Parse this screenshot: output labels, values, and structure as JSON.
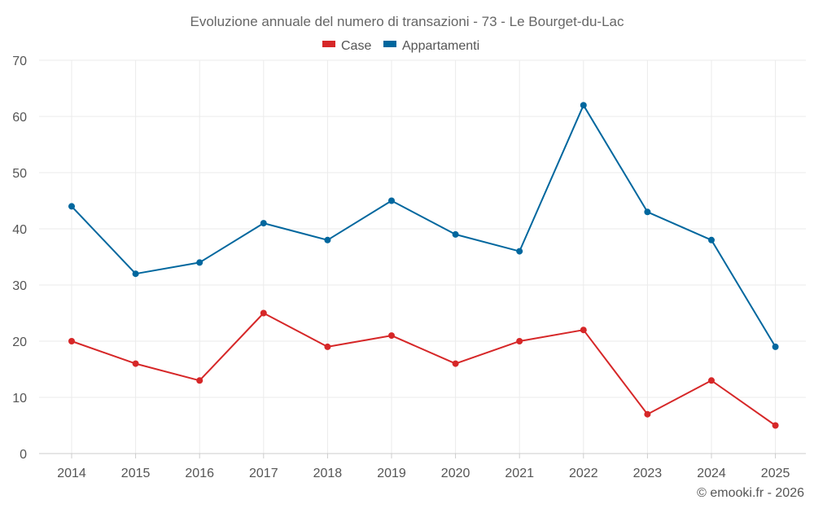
{
  "chart_data": {
    "type": "line",
    "title": "Evoluzione annuale del numero di transazioni - 73 - Le Bourget-du-Lac",
    "categories": [
      "2014",
      "2015",
      "2016",
      "2017",
      "2018",
      "2019",
      "2020",
      "2021",
      "2022",
      "2023",
      "2024",
      "2025"
    ],
    "series": [
      {
        "name": "Case",
        "color": "#d62728",
        "values": [
          20,
          16,
          13,
          25,
          19,
          21,
          16,
          20,
          22,
          7,
          13,
          5
        ]
      },
      {
        "name": "Appartamenti",
        "color": "#00679e",
        "values": [
          44,
          32,
          34,
          41,
          38,
          45,
          39,
          36,
          62,
          43,
          38,
          19
        ]
      }
    ],
    "ylim": [
      0,
      70
    ],
    "yticks": [
      0,
      10,
      20,
      30,
      40,
      50,
      60,
      70
    ],
    "grid": true,
    "legend": "top-center",
    "xlabel": "",
    "ylabel": ""
  },
  "credit": "© emooki.fr - 2026"
}
